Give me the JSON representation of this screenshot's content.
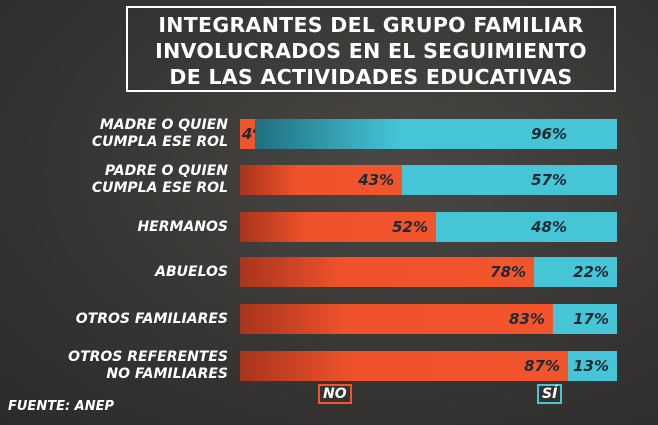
{
  "chart_data": {
    "type": "bar",
    "stacked": true,
    "orientation": "horizontal",
    "title": "INTEGRANTES DEL GRUPO FAMILIAR INVOLUCRADOS EN EL SEGUIMIENTO DE LAS ACTIVIDADES EDUCATIVAS",
    "title_lines": [
      "INTEGRANTES DEL GRUPO FAMILIAR",
      "INVOLUCRADOS EN EL SEGUIMIENTO",
      "DE LAS ACTIVIDADES EDUCATIVAS"
    ],
    "categories": [
      [
        "MADRE O QUIEN",
        "CUMPLA ESE ROL"
      ],
      [
        "PADRE O QUIEN",
        "CUMPLA ESE ROL"
      ],
      [
        "HERMANOS"
      ],
      [
        "ABUELOS"
      ],
      [
        "OTROS FAMILIARES"
      ],
      [
        "OTROS REFERENTES",
        "NO FAMILIARES"
      ]
    ],
    "series": [
      {
        "name": "NO",
        "color": "#f2542c",
        "values": [
          4,
          43,
          52,
          78,
          83,
          87
        ]
      },
      {
        "name": "SÍ",
        "color": "#45c5d6",
        "values": [
          96,
          57,
          48,
          22,
          17,
          13
        ]
      }
    ],
    "unit": "%",
    "xlim": [
      0,
      100
    ],
    "legend": "bottom"
  },
  "source": "FUENTE: ANEP"
}
